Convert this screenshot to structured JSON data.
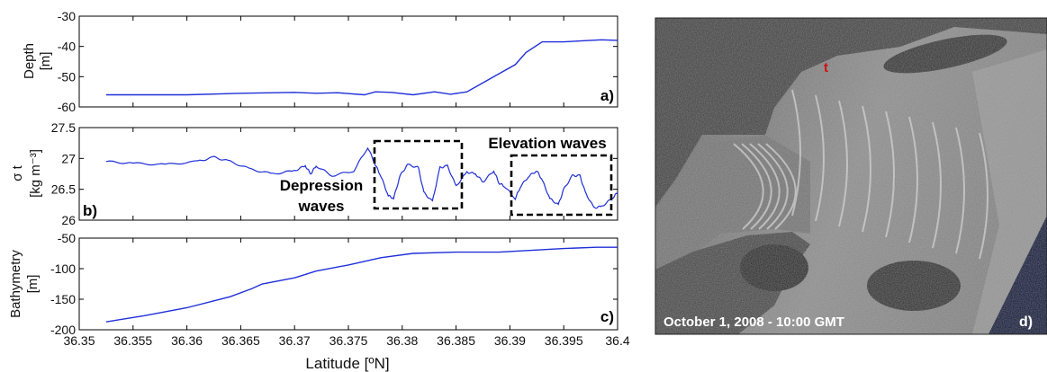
{
  "chart_data": [
    {
      "type": "line",
      "panel": "a)",
      "ylabel_line1": "Depth",
      "ylabel_line2": "[m]",
      "xlim": [
        36.35,
        36.4
      ],
      "ylim": [
        -60,
        -30
      ],
      "yticks": [
        -30,
        -40,
        -50,
        -60
      ],
      "color": "#1f2fd8",
      "x": [
        36.3525,
        36.355,
        36.36,
        36.365,
        36.37,
        36.372,
        36.374,
        36.3765,
        36.3775,
        36.379,
        36.381,
        36.383,
        36.3845,
        36.386,
        36.3875,
        36.389,
        36.3905,
        36.3915,
        36.393,
        36.395,
        36.3975,
        36.3985,
        36.4
      ],
      "y": [
        -56,
        -56,
        -56,
        -55.5,
        -55.2,
        -55.5,
        -55.3,
        -56,
        -55,
        -55.2,
        -56,
        -55,
        -55.8,
        -55,
        -52,
        -49,
        -46,
        -42,
        -38.5,
        -38.5,
        -38,
        -37.8,
        -38
      ]
    },
    {
      "type": "line",
      "panel": "b)",
      "ylabel_line1": "σ t",
      "ylabel_line2": "[kg m⁻³]",
      "xlim": [
        36.35,
        36.4
      ],
      "ylim": [
        26,
        27.5
      ],
      "yticks": [
        27.5,
        27,
        26.5,
        26
      ],
      "color": "#1f2fd8",
      "x": [
        36.3525,
        36.355,
        36.358,
        36.361,
        36.3625,
        36.364,
        36.366,
        36.368,
        36.37,
        36.371,
        36.3715,
        36.372,
        36.3735,
        36.3755,
        36.3768,
        36.3775,
        36.378,
        36.3787,
        36.3792,
        36.3798,
        36.3805,
        36.3815,
        36.382,
        36.3828,
        36.3835,
        36.3842,
        36.385,
        36.386,
        36.3868,
        36.3875,
        36.3885,
        36.389,
        36.3895,
        36.3905,
        36.391,
        36.3918,
        36.3925,
        36.393,
        36.3937,
        36.3945,
        36.395,
        36.3958,
        36.3965,
        36.397,
        36.3978,
        36.3985,
        36.3995,
        36.4
      ],
      "y": [
        26.95,
        26.92,
        26.9,
        26.95,
        27.02,
        26.95,
        26.82,
        26.75,
        26.8,
        26.88,
        26.75,
        26.88,
        26.72,
        26.8,
        27.18,
        26.9,
        26.72,
        26.4,
        26.35,
        26.72,
        26.9,
        26.85,
        26.45,
        26.3,
        26.85,
        26.88,
        26.55,
        26.78,
        26.75,
        26.62,
        26.8,
        26.6,
        26.55,
        26.35,
        26.55,
        26.72,
        26.8,
        26.65,
        26.35,
        26.25,
        26.5,
        26.72,
        26.72,
        26.45,
        26.2,
        26.22,
        26.35,
        26.45
      ]
    },
    {
      "type": "line",
      "panel": "c)",
      "ylabel_line1": "Bathymetry",
      "ylabel_line2": "[m]",
      "xlabel": "Latitude [ºN]",
      "xlim": [
        36.35,
        36.4
      ],
      "ylim": [
        -200,
        -50
      ],
      "yticks": [
        -50,
        -100,
        -150,
        -200
      ],
      "xticks": [
        "36.35",
        "36.355",
        "36.36",
        "36.365",
        "36.37",
        "36.375",
        "36.38",
        "36.385",
        "36.39",
        "36.395",
        "36.4"
      ],
      "color": "#1f2fd8",
      "x": [
        36.3525,
        36.356,
        36.36,
        36.364,
        36.366,
        36.367,
        36.37,
        36.372,
        36.375,
        36.378,
        36.381,
        36.385,
        36.389,
        36.392,
        36.395,
        36.398,
        36.4
      ],
      "y": [
        -187,
        -177,
        -164,
        -146,
        -133,
        -125,
        -115,
        -104,
        -94,
        -82,
        -75,
        -73,
        -73,
        -70,
        -67,
        -65,
        -65
      ]
    }
  ],
  "annotations": {
    "depression_line1": "Depression",
    "depression_line2": "waves",
    "elevation": "Elevation waves",
    "box_color": "#000000"
  },
  "satellite": {
    "caption": "October 1, 2008 - 10:00 GMT",
    "panel": "d)",
    "marker": "t"
  }
}
